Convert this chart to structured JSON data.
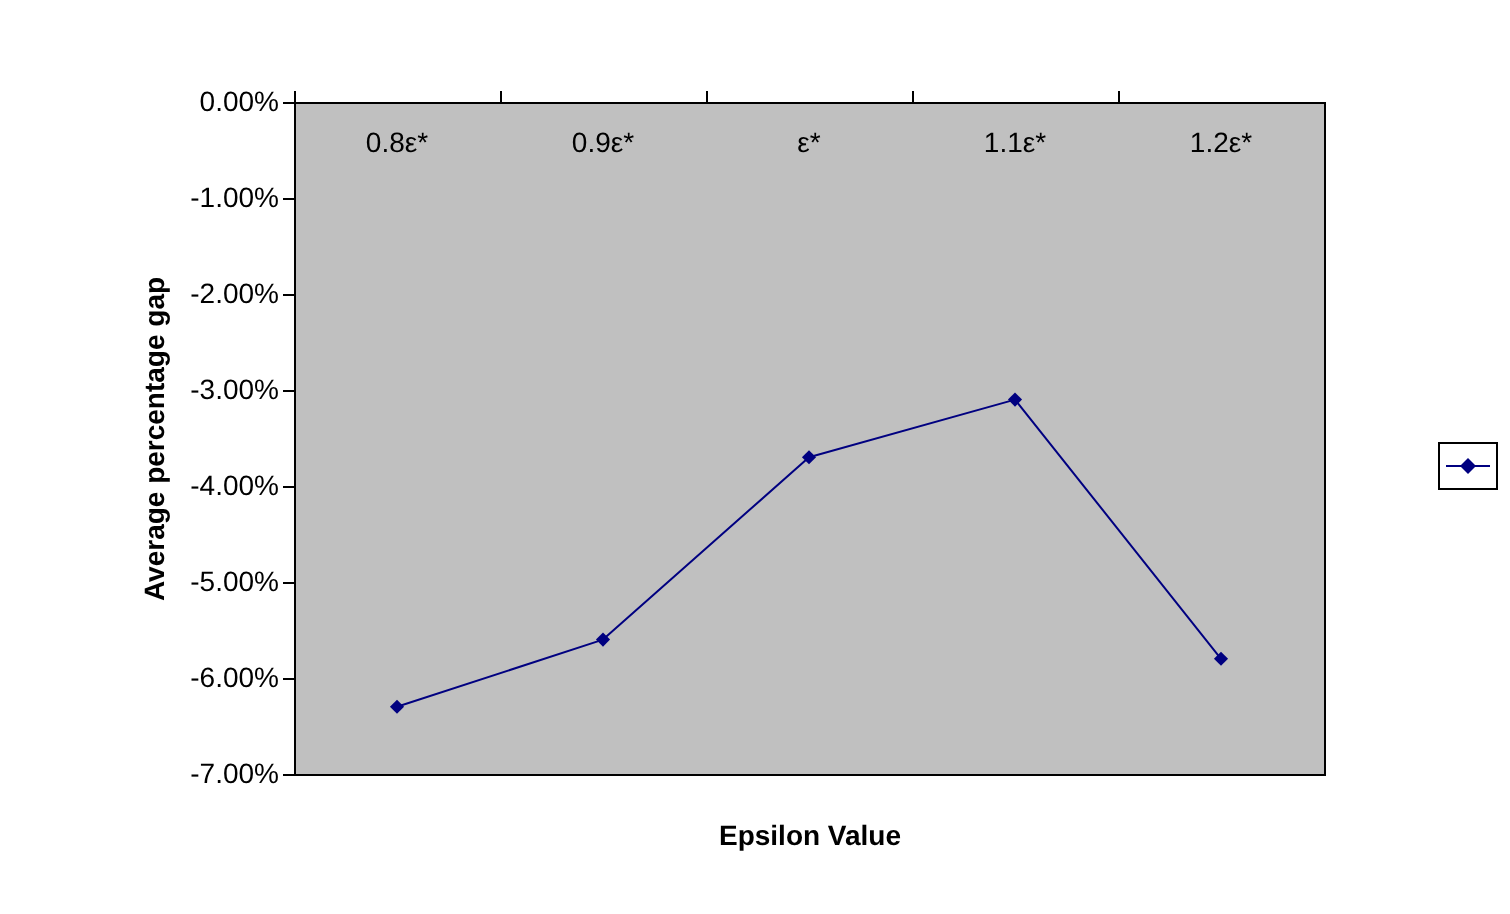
{
  "chart_data": {
    "type": "line",
    "xlabel": "Epsilon Value",
    "ylabel": "Average percentage gap",
    "categories": [
      "0.8ε*",
      "0.9ε*",
      "ε*",
      "1.1ε*",
      "1.2ε*"
    ],
    "series": [
      {
        "color": "#000080",
        "values": [
          -6.3,
          -5.6,
          -3.7,
          -3.1,
          -5.8
        ]
      }
    ],
    "ylim": [
      -7,
      0
    ],
    "yticks": [
      {
        "value": -7,
        "label": "-7.00%"
      },
      {
        "value": -6,
        "label": "-6.00%"
      },
      {
        "value": -5,
        "label": "-5.00%"
      },
      {
        "value": -4,
        "label": "-4.00%"
      },
      {
        "value": -3,
        "label": "-3.00%"
      },
      {
        "value": -2,
        "label": "-2.00%"
      },
      {
        "value": -1,
        "label": "-1.00%"
      },
      {
        "value": 0,
        "label": "0.00%"
      }
    ],
    "grid": false,
    "marker": "diamond",
    "line_style": "solid"
  }
}
